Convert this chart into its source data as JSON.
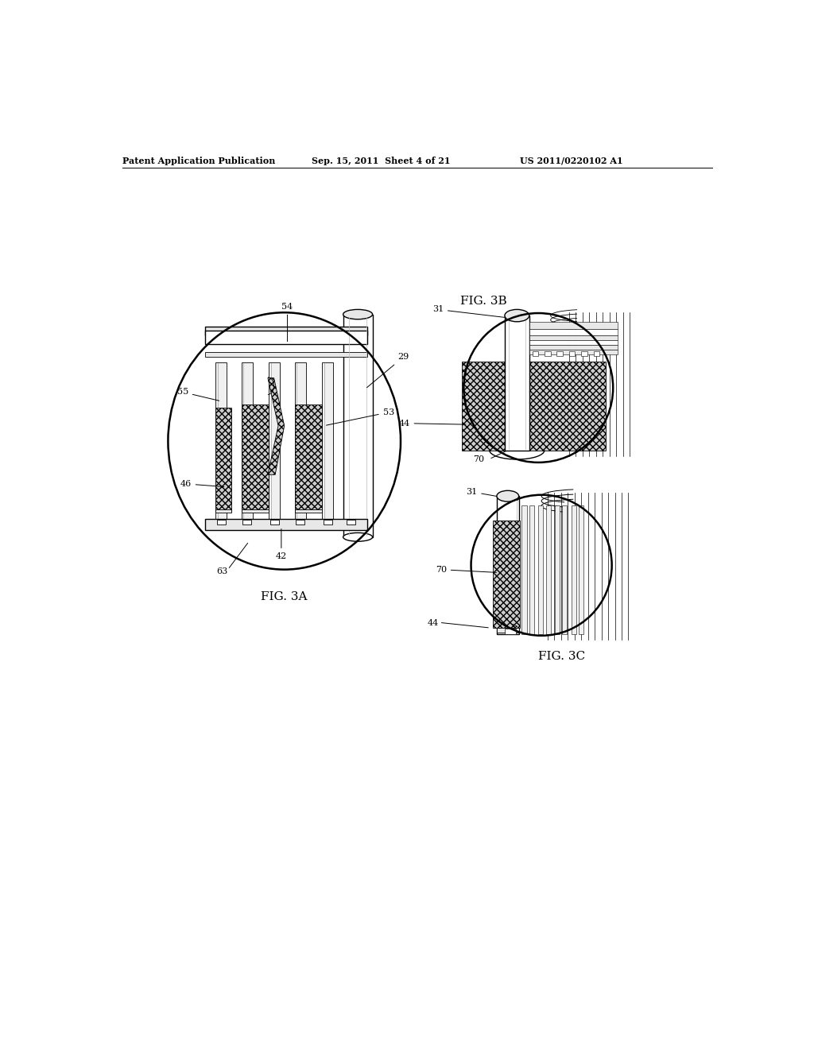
{
  "bg_color": "#ffffff",
  "text_color": "#000000",
  "header_left": "Patent Application Publication",
  "header_mid": "Sep. 15, 2011  Sheet 4 of 21",
  "header_right": "US 2011/0220102 A1",
  "fig3a_label": "FIG. 3A",
  "fig3b_label": "FIG. 3B",
  "fig3c_label": "FIG. 3C",
  "label_fontsize": 8,
  "header_fontsize": 8,
  "fig_label_fontsize": 11,
  "lw_main": 1.0,
  "lw_thick": 1.8,
  "lw_thin": 0.6,
  "gray_light": "#e8e8e8",
  "gray_mid": "#bbbbbb",
  "gray_dark": "#888888",
  "mesh_color": "#cccccc",
  "slat_fill": "#f0f0f0"
}
